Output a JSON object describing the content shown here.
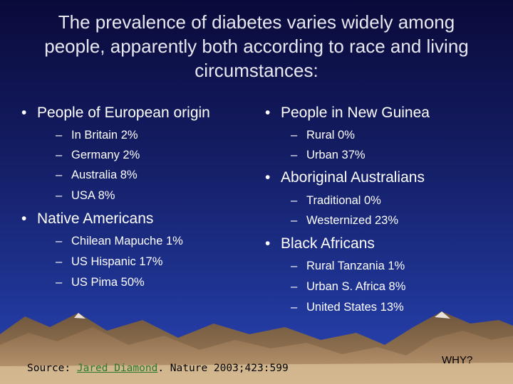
{
  "slide": {
    "title": "The prevalence of diabetes varies widely among people, apparently both according to race and living circumstances:",
    "left_column": [
      {
        "heading": "People of European origin",
        "items": [
          "In Britain 2%",
          "Germany 2%",
          "Australia 8%",
          "USA 8%"
        ]
      },
      {
        "heading": "Native Americans",
        "items": [
          "Chilean Mapuche 1%",
          "US Hispanic 17%",
          "US Pima 50%"
        ]
      }
    ],
    "right_column": [
      {
        "heading": "People in New Guinea",
        "items": [
          "Rural 0%",
          "Urban 37%"
        ]
      },
      {
        "heading": "Aboriginal Australians",
        "items": [
          "Traditional 0%",
          "Westernized 23%"
        ]
      },
      {
        "heading": "Black Africans",
        "items": [
          "Rural Tanzania 1%",
          "Urban S. Africa 8%",
          "United States 13%"
        ]
      }
    ],
    "bullet_symbol": "•",
    "dash_symbol": "–",
    "source_label": "Source:",
    "source_author": "Jared Diamond",
    "source_citation": ". Nature 2003;423:599",
    "why_label": "WHY?",
    "colors": {
      "background_top": "#0a0a3a",
      "background_bottom": "#2a46b8",
      "text": "#ffffff",
      "author_link": "#2a7a2a"
    }
  }
}
